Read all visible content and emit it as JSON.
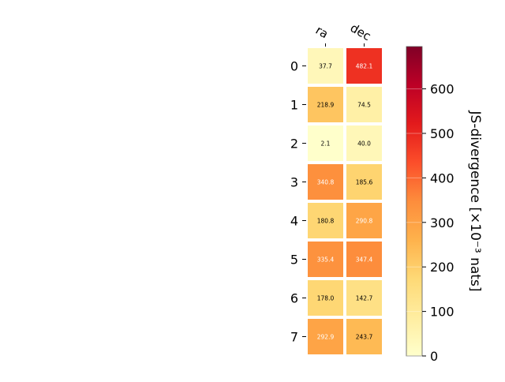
{
  "chart_data": {
    "type": "heatmap",
    "columns": [
      "ra",
      "dec"
    ],
    "rows": [
      "0",
      "1",
      "2",
      "3",
      "4",
      "5",
      "6",
      "7"
    ],
    "values": [
      [
        37.7,
        482.1
      ],
      [
        218.9,
        74.5
      ],
      [
        2.1,
        40.0
      ],
      [
        340.8,
        185.6
      ],
      [
        180.8,
        290.8
      ],
      [
        335.4,
        347.4
      ],
      [
        178.0,
        142.7
      ],
      [
        292.9,
        243.7
      ]
    ],
    "value_labels": [
      [
        "37.7",
        "482.1"
      ],
      [
        "218.9",
        "74.5"
      ],
      [
        "2.1",
        "40.0"
      ],
      [
        "340.8",
        "185.6"
      ],
      [
        "180.8",
        "290.8"
      ],
      [
        "335.4",
        "347.4"
      ],
      [
        "178.0",
        "142.7"
      ],
      [
        "292.9",
        "243.7"
      ]
    ],
    "colorbar": {
      "label": "JS-divergence [×10⁻³ nats]",
      "ticks": [
        "0",
        "100",
        "200",
        "300",
        "400",
        "500",
        "600"
      ],
      "range": [
        0,
        695
      ],
      "colormap": "YlOrRd"
    },
    "legend": "right"
  }
}
